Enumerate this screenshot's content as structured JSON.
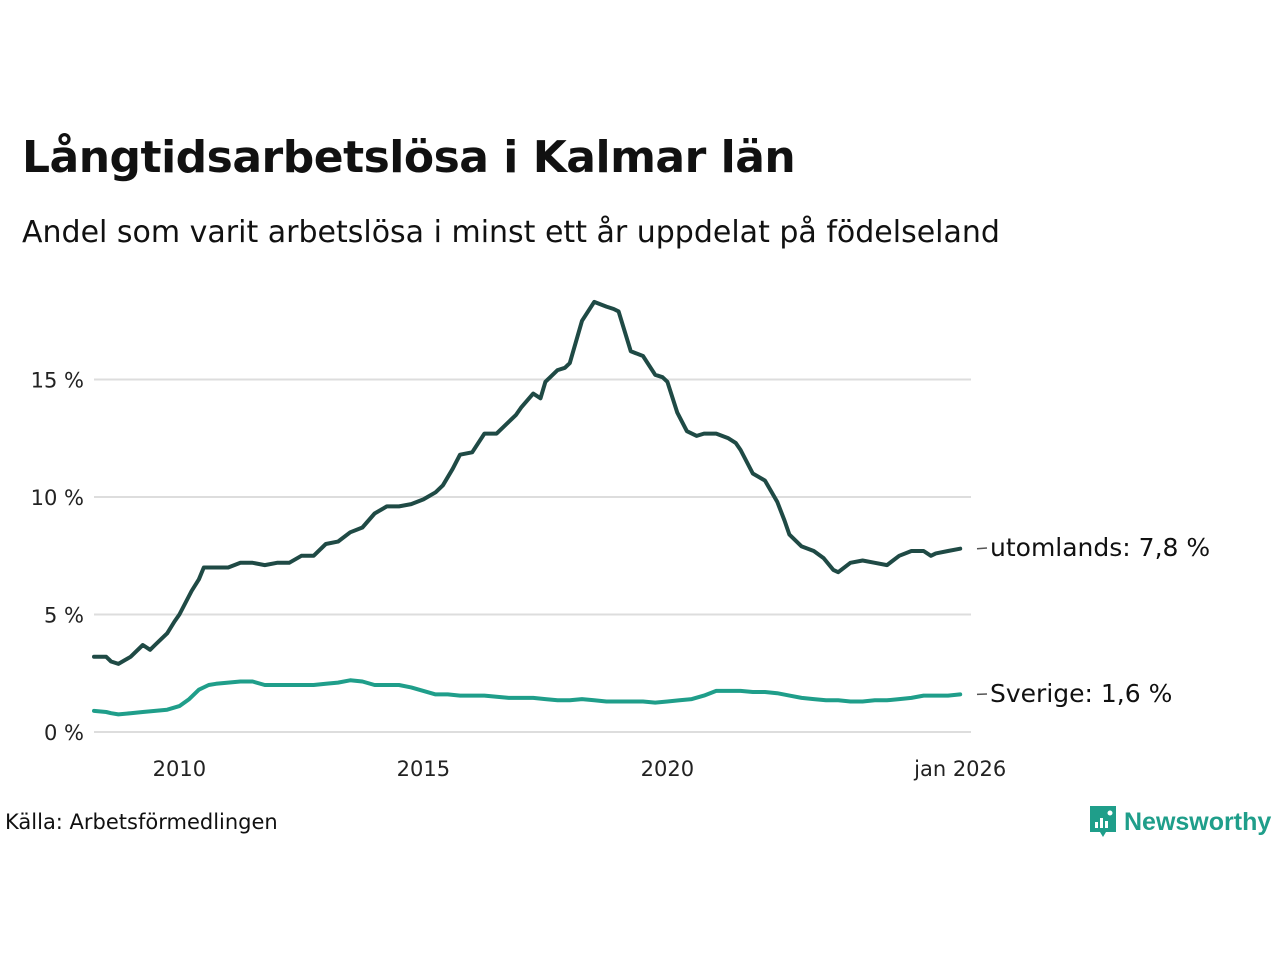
{
  "header": {
    "title": "Långtidsarbetslösa i Kalmar län",
    "subtitle": "Andel som varit arbetslösa i minst ett år uppdelat på födelseland"
  },
  "footer": {
    "source": "Källa: Arbetsförmedlingen",
    "brand": "Newsworthy"
  },
  "colors": {
    "utomlands": "#1f4a45",
    "sverige": "#1f9e8a",
    "grid": "#dddddd",
    "brand": "#1f9e8a"
  },
  "chart_data": {
    "type": "line",
    "title": "Långtidsarbetslösa i Kalmar län",
    "subtitle": "Andel som varit arbetslösa i minst ett år uppdelat på födelseland",
    "xlabel": "",
    "ylabel": "",
    "xlim": [
      2008.25,
      2026.0
    ],
    "ylim": [
      0,
      18.5
    ],
    "grid": true,
    "y_ticks": [
      {
        "value": 0,
        "label": "0 %"
      },
      {
        "value": 5,
        "label": "5 %"
      },
      {
        "value": 10,
        "label": "10 %"
      },
      {
        "value": 15,
        "label": "15 %"
      }
    ],
    "x_ticks": [
      {
        "value": 2010,
        "label": "2010"
      },
      {
        "value": 2015,
        "label": "2015"
      },
      {
        "value": 2020,
        "label": "2020"
      },
      {
        "value": 2026,
        "label": "jan 2026"
      }
    ],
    "series": [
      {
        "name": "utomlands",
        "end_label": "utomlands: 7,8 %",
        "x": [
          2008.25,
          2008.5,
          2008.6,
          2008.75,
          2009.0,
          2009.25,
          2009.4,
          2009.5,
          2009.75,
          2009.9,
          2010.0,
          2010.25,
          2010.4,
          2010.5,
          2010.75,
          2011.0,
          2011.25,
          2011.5,
          2011.75,
          2012.0,
          2012.25,
          2012.5,
          2012.75,
          2013.0,
          2013.25,
          2013.5,
          2013.75,
          2014.0,
          2014.25,
          2014.5,
          2014.75,
          2015.0,
          2015.25,
          2015.4,
          2015.6,
          2015.75,
          2016.0,
          2016.25,
          2016.5,
          2016.75,
          2016.9,
          2017.0,
          2017.25,
          2017.4,
          2017.5,
          2017.75,
          2017.9,
          2018.0,
          2018.25,
          2018.5,
          2018.75,
          2018.9,
          2019.0,
          2019.25,
          2019.5,
          2019.75,
          2019.9,
          2020.0,
          2020.2,
          2020.4,
          2020.6,
          2020.75,
          2021.0,
          2021.25,
          2021.4,
          2021.5,
          2021.75,
          2022.0,
          2022.25,
          2022.4,
          2022.5,
          2022.75,
          2023.0,
          2023.2,
          2023.4,
          2023.5,
          2023.75,
          2024.0,
          2024.25,
          2024.5,
          2024.75,
          2025.0,
          2025.25,
          2025.4,
          2025.5,
          2025.75,
          2026.0
        ],
        "y": [
          3.2,
          3.2,
          3.0,
          2.9,
          3.2,
          3.7,
          3.5,
          3.7,
          4.2,
          4.7,
          5.0,
          6.0,
          6.5,
          7.0,
          7.0,
          7.0,
          7.2,
          7.2,
          7.1,
          7.2,
          7.2,
          7.5,
          7.5,
          8.0,
          8.1,
          8.5,
          8.7,
          9.3,
          9.6,
          9.6,
          9.7,
          9.9,
          10.2,
          10.5,
          11.2,
          11.8,
          11.9,
          12.7,
          12.7,
          13.2,
          13.5,
          13.8,
          14.4,
          14.2,
          14.9,
          15.4,
          15.5,
          15.7,
          17.5,
          18.3,
          18.1,
          18.0,
          17.9,
          16.2,
          16.0,
          15.2,
          15.1,
          14.9,
          13.6,
          12.8,
          12.6,
          12.7,
          12.7,
          12.5,
          12.3,
          12.0,
          11.0,
          10.7,
          9.8,
          9.0,
          8.4,
          7.9,
          7.7,
          7.4,
          6.9,
          6.8,
          7.2,
          7.3,
          7.2,
          7.1,
          7.5,
          7.7,
          7.7,
          7.5,
          7.6,
          7.7,
          7.8
        ]
      },
      {
        "name": "Sverige",
        "end_label": "Sverige: 1,6 %",
        "x": [
          2008.25,
          2008.5,
          2008.6,
          2008.75,
          2009.0,
          2009.25,
          2009.5,
          2009.75,
          2010.0,
          2010.2,
          2010.4,
          2010.6,
          2010.75,
          2011.0,
          2011.25,
          2011.5,
          2011.75,
          2012.0,
          2012.25,
          2012.5,
          2012.75,
          2013.0,
          2013.25,
          2013.5,
          2013.75,
          2014.0,
          2014.25,
          2014.5,
          2014.75,
          2015.0,
          2015.25,
          2015.5,
          2015.75,
          2016.0,
          2016.25,
          2016.5,
          2016.75,
          2017.0,
          2017.25,
          2017.5,
          2017.75,
          2018.0,
          2018.25,
          2018.5,
          2018.75,
          2019.0,
          2019.25,
          2019.5,
          2019.75,
          2020.0,
          2020.25,
          2020.5,
          2020.75,
          2021.0,
          2021.25,
          2021.5,
          2021.75,
          2022.0,
          2022.25,
          2022.5,
          2022.75,
          2023.0,
          2023.25,
          2023.5,
          2023.75,
          2024.0,
          2024.25,
          2024.5,
          2024.75,
          2025.0,
          2025.25,
          2025.5,
          2025.75,
          2026.0
        ],
        "y": [
          0.9,
          0.85,
          0.8,
          0.75,
          0.8,
          0.85,
          0.9,
          0.95,
          1.1,
          1.4,
          1.8,
          2.0,
          2.05,
          2.1,
          2.15,
          2.15,
          2.0,
          2.0,
          2.0,
          2.0,
          2.0,
          2.05,
          2.1,
          2.2,
          2.15,
          2.0,
          2.0,
          2.0,
          1.9,
          1.75,
          1.6,
          1.6,
          1.55,
          1.55,
          1.55,
          1.5,
          1.45,
          1.45,
          1.45,
          1.4,
          1.35,
          1.35,
          1.4,
          1.35,
          1.3,
          1.3,
          1.3,
          1.3,
          1.25,
          1.3,
          1.35,
          1.4,
          1.55,
          1.75,
          1.75,
          1.75,
          1.7,
          1.7,
          1.65,
          1.55,
          1.45,
          1.4,
          1.35,
          1.35,
          1.3,
          1.3,
          1.35,
          1.35,
          1.4,
          1.45,
          1.55,
          1.55,
          1.55,
          1.6
        ]
      }
    ]
  }
}
